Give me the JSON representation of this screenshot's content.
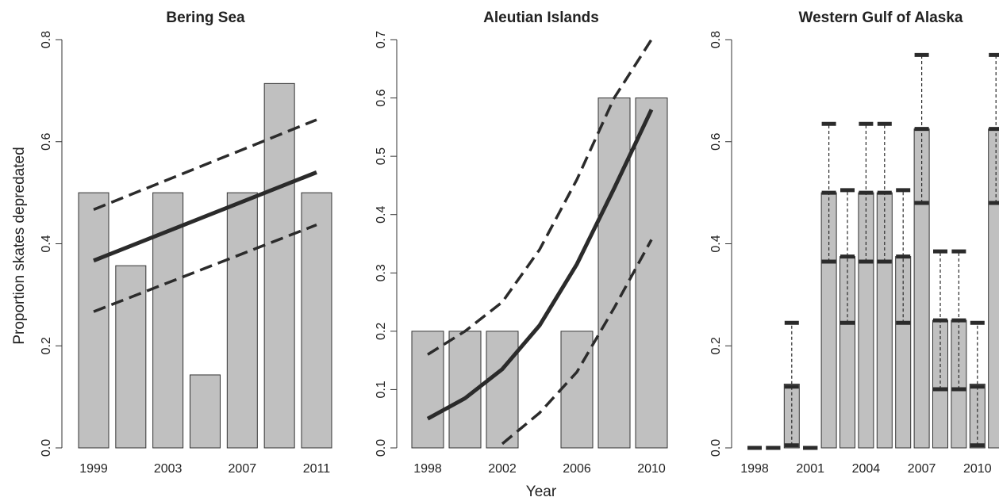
{
  "figure": {
    "ylabel": "Proportion skates depredated",
    "xlabel": "Year"
  },
  "colors": {
    "bar_fill": "#c0c0c0",
    "line": "#2b2b2b"
  },
  "chart_data": [
    {
      "type": "bar",
      "title": "Bering Sea",
      "ylim": [
        0,
        0.8
      ],
      "yticks": [
        "0.0",
        "0.2",
        "0.4",
        "0.6",
        "0.8"
      ],
      "xtick_labels": [
        "1999",
        "2003",
        "2007",
        "2011"
      ],
      "categories": [
        "1999",
        "2001",
        "2003",
        "2005",
        "2007",
        "2009",
        "2011"
      ],
      "values": [
        0.5,
        0.357,
        0.5,
        0.143,
        0.5,
        0.714,
        0.5
      ],
      "fit": {
        "x": [
          1999,
          2011
        ],
        "fitted": [
          0.367,
          0.54
        ],
        "lower": [
          0.267,
          0.437
        ],
        "upper": [
          0.467,
          0.643
        ]
      }
    },
    {
      "type": "bar",
      "title": "Aleutian Islands",
      "ylim": [
        0,
        0.7
      ],
      "yticks": [
        "0.0",
        "0.1",
        "0.2",
        "0.3",
        "0.4",
        "0.5",
        "0.6",
        "0.7"
      ],
      "xtick_labels": [
        "1998",
        "2002",
        "2006",
        "2010"
      ],
      "categories": [
        "1998",
        "2000",
        "2002",
        "2004",
        "2006",
        "2008",
        "2010"
      ],
      "values": [
        0.2,
        0.2,
        0.2,
        0.0,
        0.2,
        0.6,
        0.6
      ],
      "fit": {
        "x": [
          1998,
          2000,
          2002,
          2004,
          2006,
          2008,
          2010
        ],
        "fitted": [
          0.05,
          0.085,
          0.135,
          0.21,
          0.315,
          0.445,
          0.58
        ],
        "lower": [
          null,
          null,
          0.007,
          0.06,
          0.13,
          0.24,
          0.357
        ],
        "upper": [
          0.16,
          0.2,
          0.25,
          0.34,
          0.46,
          0.6,
          0.73
        ]
      }
    },
    {
      "type": "bar",
      "title": "Western Gulf of Alaska",
      "ylim": [
        0,
        0.8
      ],
      "yticks": [
        "0.0",
        "0.2",
        "0.4",
        "0.6",
        "0.8"
      ],
      "xtick_labels": [
        "1998",
        "2001",
        "2004",
        "2007",
        "2010"
      ],
      "categories": [
        "1998",
        "1999",
        "2000",
        "2001",
        "2002",
        "2003",
        "2004",
        "2005",
        "2006",
        "2007",
        "2008",
        "2009",
        "2010",
        "2011"
      ],
      "values": [
        0.0,
        0.0,
        0.125,
        0.0,
        0.5,
        0.375,
        0.5,
        0.5,
        0.375,
        0.625,
        0.25,
        0.25,
        0.125,
        0.625
      ],
      "error_bars": [
        [
          0.0,
          0.0,
          0.0
        ],
        [
          0.0,
          0.0,
          0.0
        ],
        [
          0.005,
          0.12,
          0.245
        ],
        [
          0.0,
          0.0,
          0.0
        ],
        [
          0.365,
          0.5,
          0.635
        ],
        [
          0.245,
          0.375,
          0.505
        ],
        [
          0.365,
          0.5,
          0.635
        ],
        [
          0.365,
          0.5,
          0.635
        ],
        [
          0.245,
          0.375,
          0.505
        ],
        [
          0.48,
          0.625,
          0.77
        ],
        [
          0.115,
          0.25,
          0.385
        ],
        [
          0.115,
          0.25,
          0.385
        ],
        [
          0.005,
          0.12,
          0.245
        ],
        [
          0.48,
          0.625,
          0.77
        ]
      ]
    }
  ]
}
